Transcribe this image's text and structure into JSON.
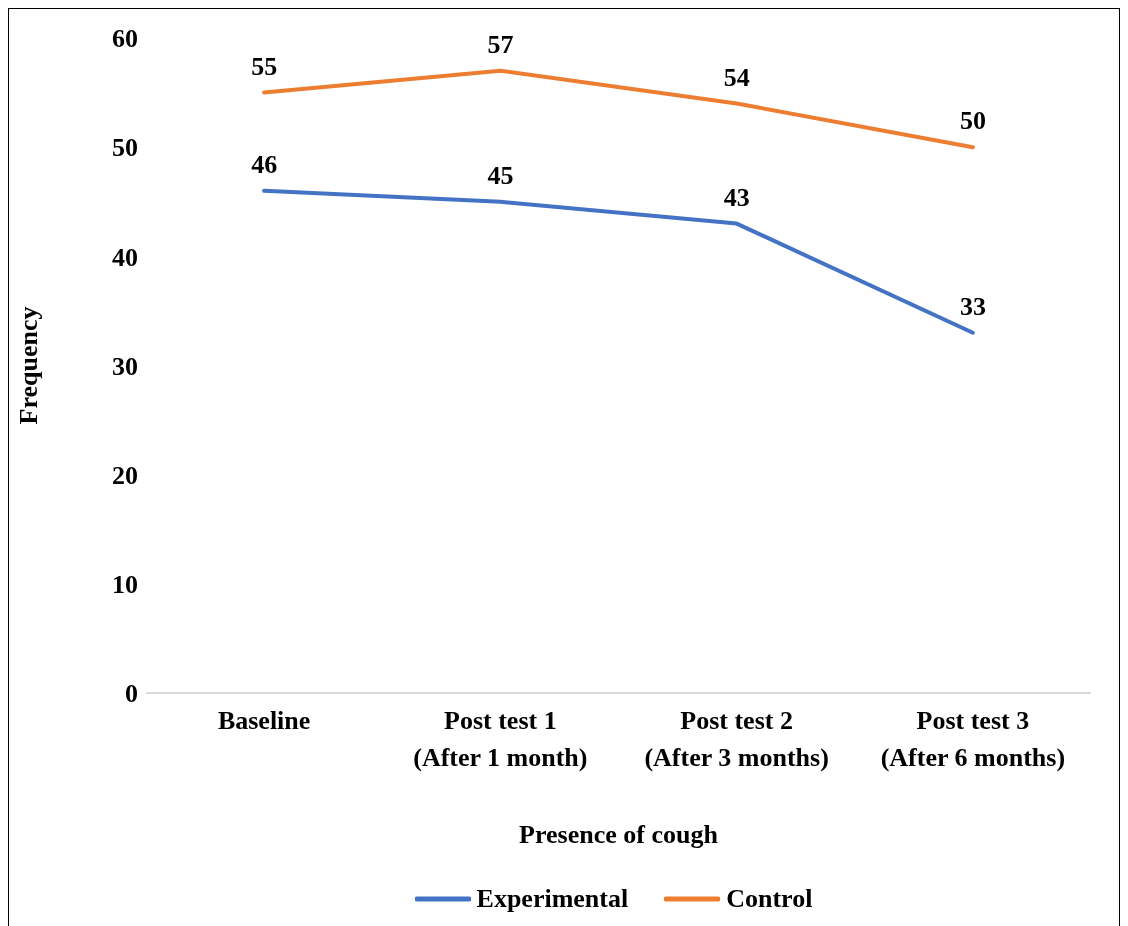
{
  "chart_data": {
    "type": "line",
    "xlabel": "Presence of cough",
    "ylabel": "Frequency",
    "categories": [
      "Baseline",
      "Post test 1\n(After 1 month)",
      "Post test 2\n(After 3 months)",
      "Post test 3\n(After 6 months)"
    ],
    "series": [
      {
        "name": "Experimental",
        "color": "#4472c4",
        "values": [
          46,
          45,
          43,
          33
        ]
      },
      {
        "name": "Control",
        "color": "#ed7d31",
        "values": [
          55,
          57,
          54,
          50
        ]
      }
    ],
    "ylim": [
      0,
      60
    ],
    "yticks": [
      0,
      10,
      20,
      30,
      40,
      50,
      60
    ],
    "grid": false,
    "legend": "bottom",
    "data_labels": true,
    "marker": "none",
    "line_style": "solid"
  }
}
